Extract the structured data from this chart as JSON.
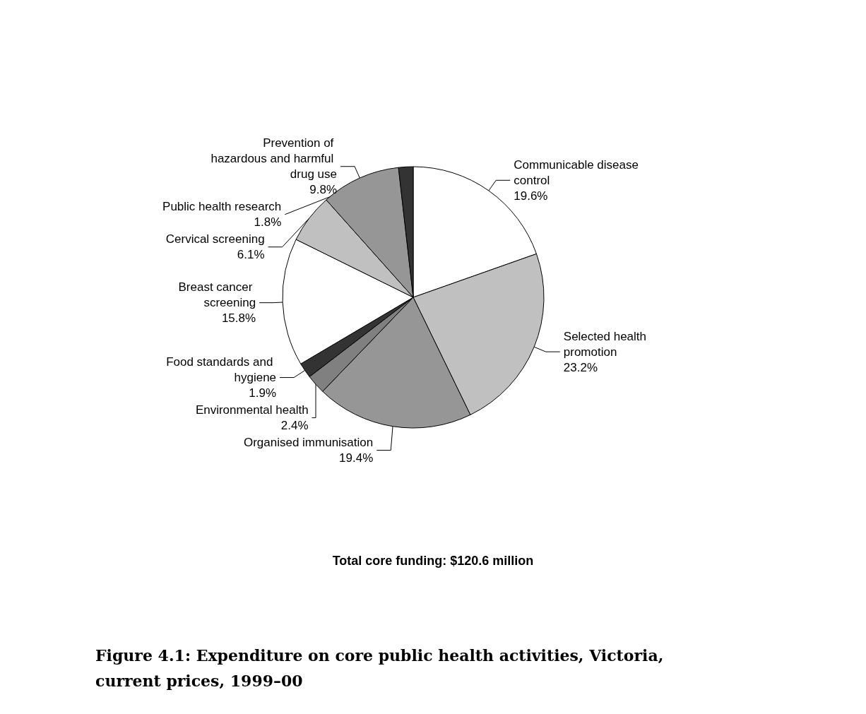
{
  "chart_data": {
    "type": "pie",
    "title": "Figure 4.1: Expenditure on core public health activities, Victoria, current prices, 1999–00",
    "annotations": [
      "Total core funding: $120.6 million"
    ],
    "categories": [
      "Communicable disease control",
      "Selected health promotion",
      "Organised immunisation",
      "Environmental health",
      "Food standards and hygiene",
      "Breast cancer screening",
      "Cervical screening",
      "Prevention of hazardous and harmful drug use",
      "Public health research"
    ],
    "values": [
      19.6,
      23.2,
      19.4,
      2.4,
      1.9,
      15.8,
      6.1,
      9.8,
      1.8
    ],
    "value_labels": [
      "19.6%",
      "23.2%",
      "19.4%",
      "2.4%",
      "1.9%",
      "15.8%",
      "6.1%",
      "9.8%",
      "1.8%"
    ],
    "colors": [
      "#ffffff",
      "#c0c0c0",
      "#969696",
      "#808080",
      "#333333",
      "#ffffff",
      "#c0c0c0",
      "#969696",
      "#333333"
    ],
    "legend": false
  }
}
